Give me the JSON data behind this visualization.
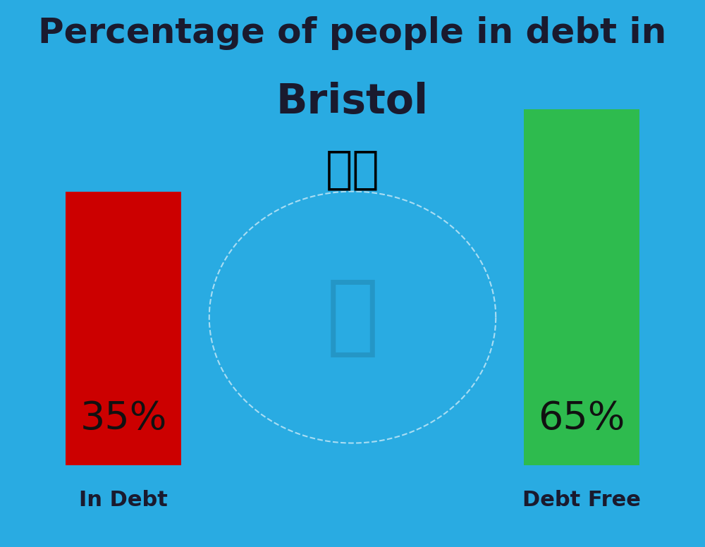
{
  "title_line1": "Percentage of people in debt in",
  "title_line2": "Bristol",
  "background_color": "#29ABE2",
  "bar1_value": 35,
  "bar1_label": "35%",
  "bar1_color": "#CC0000",
  "bar1_category": "In Debt",
  "bar2_value": 65,
  "bar2_label": "65%",
  "bar2_color": "#2EBB4E",
  "bar2_category": "Debt Free",
  "title_fontsize": 36,
  "subtitle_fontsize": 42,
  "bar_label_fontsize": 40,
  "category_fontsize": 22,
  "title_color": "#1a1a2e",
  "label_color": "#111111",
  "category_color": "#1a1a2e",
  "flag_emoji": "🇬🇧"
}
